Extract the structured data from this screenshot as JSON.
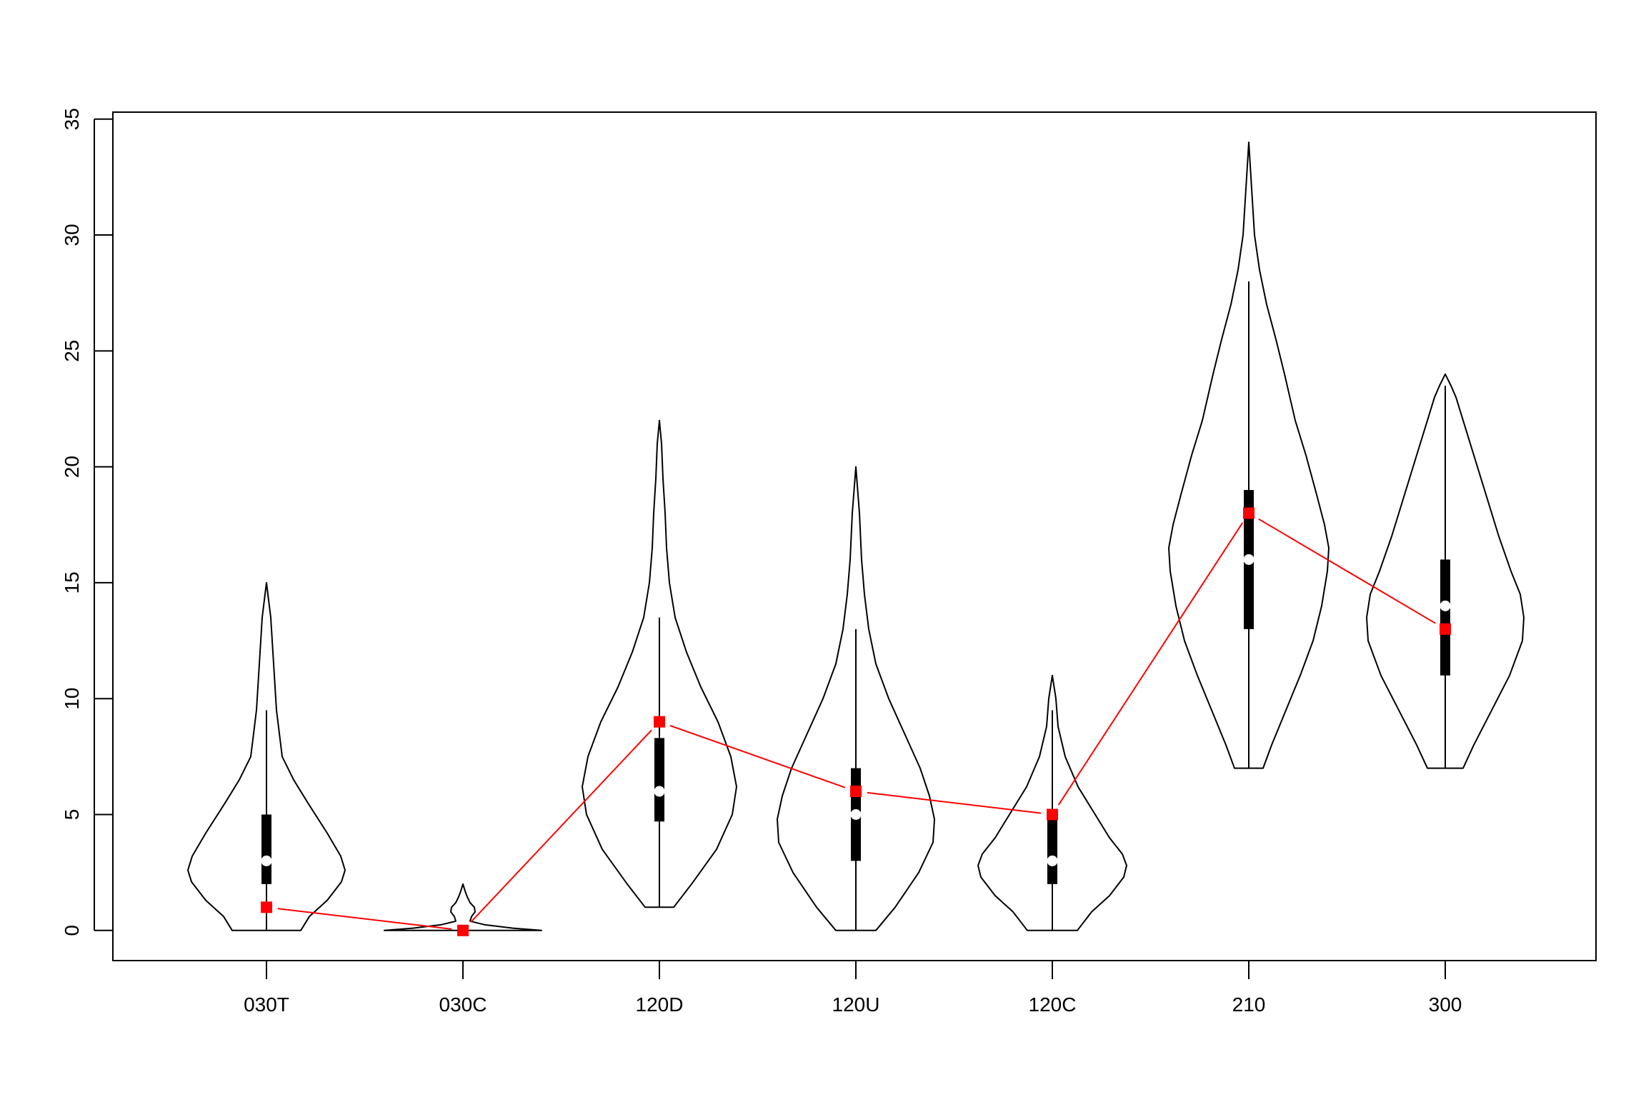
{
  "chart_data": {
    "type": "violin",
    "title": "",
    "xlabel": "",
    "ylabel": "",
    "ylim": [
      -1.3,
      35.3
    ],
    "y_ticks": [
      0,
      5,
      10,
      15,
      20,
      25,
      30,
      35
    ],
    "categories": [
      "030T",
      "030C",
      "120D",
      "120U",
      "120C",
      "210",
      "300"
    ],
    "medians": [
      3,
      0,
      6,
      5,
      3,
      16,
      14
    ],
    "q1": [
      2,
      0,
      4.7,
      3,
      2,
      13,
      11
    ],
    "q3": [
      5,
      0,
      8.3,
      7,
      5,
      19,
      16
    ],
    "whisker_low": [
      0,
      0,
      1,
      0,
      0,
      7,
      7
    ],
    "whisker_high": [
      9.5,
      0,
      13.5,
      13,
      9.5,
      28,
      23.5
    ],
    "data_min": [
      0,
      0,
      1,
      0,
      0,
      7,
      7
    ],
    "data_max": [
      15,
      2,
      22,
      20,
      11,
      34,
      24
    ],
    "overlay_series": {
      "values": [
        1,
        0,
        9,
        6,
        5,
        18,
        13
      ],
      "color": "#ff0000"
    },
    "grid": false,
    "legend": "none",
    "colors": {
      "violin_stroke": "#000000",
      "box": "#000000",
      "median_dot": "#ffffff",
      "overlay": "#ff0000"
    }
  }
}
